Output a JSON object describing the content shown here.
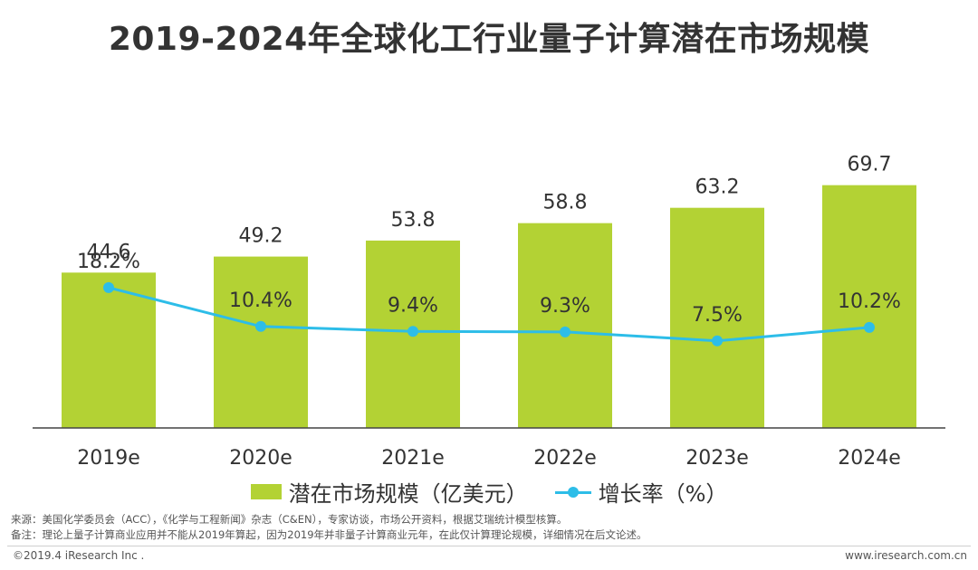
{
  "title": "2019-2024年全球化工行业量子计算潜在市场规模",
  "colors": {
    "bar": "#B3D234",
    "line": "#2DBDE8",
    "axis": "#444444",
    "text": "#333333"
  },
  "chart_data": {
    "type": "bar+line",
    "categories": [
      "2019e",
      "2020e",
      "2021e",
      "2022e",
      "2023e",
      "2024e"
    ],
    "series": [
      {
        "name": "潜在市场规模（亿美元）",
        "type": "bar",
        "values": [
          44.6,
          49.2,
          53.8,
          58.8,
          63.2,
          69.7
        ],
        "labels": [
          "44.6",
          "49.2",
          "53.8",
          "58.8",
          "63.2",
          "69.7"
        ]
      },
      {
        "name": "增长率（%）",
        "type": "line",
        "values": [
          18.2,
          10.4,
          9.4,
          9.3,
          7.5,
          10.2
        ],
        "labels": [
          "18.2%",
          "10.4%",
          "9.4%",
          "9.3%",
          "7.5%",
          "10.2%"
        ]
      }
    ],
    "ylim_bar": [
      0,
      100
    ],
    "ylim_line": [
      -10,
      60
    ],
    "legend_position": "bottom"
  },
  "legend": {
    "bar_label": "潜在市场规模（亿美元）",
    "line_label": "增长率（%）"
  },
  "notes": {
    "source": "来源：美国化学委员会（ACC），《化学与工程新闻》杂志（C&EN），专家访谈，市场公开资料，根据艾瑞统计模型核算。",
    "remark": "备注：理论上量子计算商业应用并不能从2019年算起，因为2019年并非量子计算商业元年，在此仅计算理论规模，详细情况在后文论述。"
  },
  "footer": {
    "copyright": "©2019.4 iResearch Inc .",
    "website": "www.iresearch.com.cn"
  }
}
